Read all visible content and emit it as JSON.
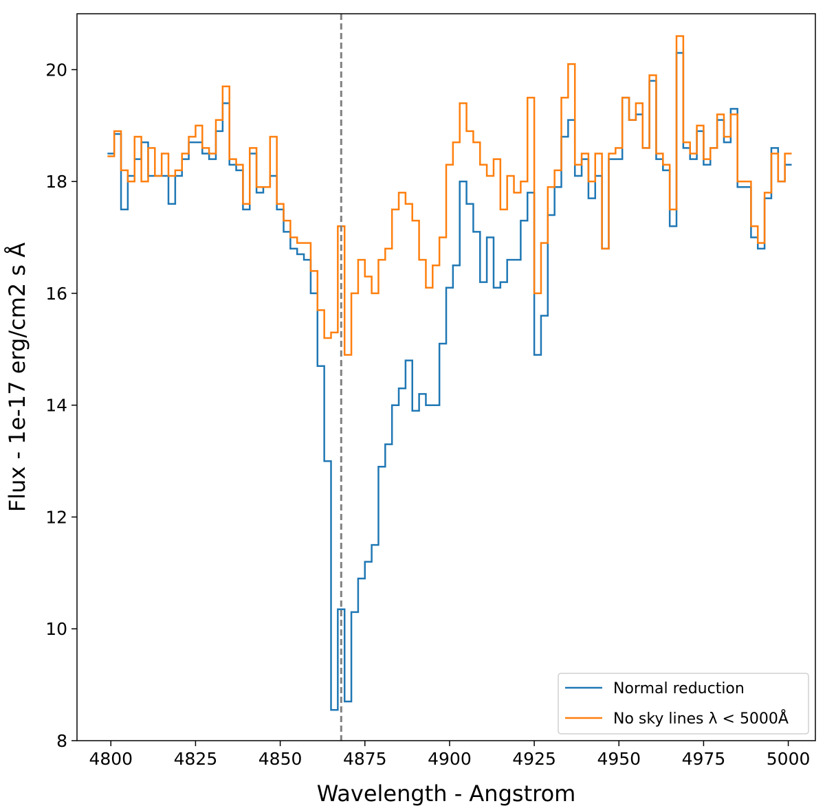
{
  "chart_data": {
    "type": "step",
    "xlabel": "Wavelength - Angstrom",
    "ylabel": "Flux - 1e-17 erg/cm2 s Å",
    "x": [
      4800,
      4802,
      4804,
      4806,
      4808,
      4810,
      4812,
      4814,
      4816,
      4818,
      4820,
      4822,
      4824,
      4826,
      4828,
      4830,
      4832,
      4834,
      4836,
      4838,
      4840,
      4842,
      4844,
      4846,
      4848,
      4850,
      4852,
      4854,
      4856,
      4858,
      4860,
      4862,
      4864,
      4866,
      4868,
      4870,
      4872,
      4874,
      4876,
      4878,
      4880,
      4882,
      4884,
      4886,
      4888,
      4890,
      4892,
      4894,
      4896,
      4898,
      4900,
      4902,
      4904,
      4906,
      4908,
      4910,
      4912,
      4914,
      4916,
      4918,
      4920,
      4922,
      4924,
      4926,
      4928,
      4930,
      4932,
      4934,
      4936,
      4938,
      4940,
      4942,
      4944,
      4946,
      4948,
      4950,
      4952,
      4954,
      4956,
      4958,
      4960,
      4962,
      4964,
      4966,
      4968,
      4970,
      4972,
      4974,
      4976,
      4978,
      4980,
      4982,
      4984,
      4986,
      4988,
      4990,
      4992,
      4994,
      4996,
      4998,
      5000
    ],
    "series": [
      {
        "name": "Normal reduction",
        "color": "#1f77b4",
        "values": [
          18.5,
          18.85,
          17.5,
          18.1,
          18.4,
          18.7,
          18.1,
          18.1,
          18.1,
          17.6,
          18.1,
          18.4,
          18.7,
          18.7,
          18.5,
          18.4,
          18.9,
          19.4,
          18.3,
          18.2,
          17.5,
          18.5,
          17.8,
          17.9,
          18.1,
          17.5,
          17.1,
          16.8,
          16.7,
          16.6,
          16.0,
          14.7,
          13.0,
          8.55,
          10.35,
          8.7,
          10.3,
          10.9,
          11.2,
          11.5,
          12.9,
          13.3,
          14.0,
          14.3,
          14.8,
          13.9,
          14.2,
          14.0,
          14.0,
          15.1,
          16.1,
          16.5,
          18.0,
          17.6,
          17.1,
          16.2,
          17.0,
          16.1,
          16.2,
          16.6,
          16.6,
          17.3,
          17.8,
          14.9,
          15.6,
          17.4,
          17.9,
          18.8,
          19.1,
          18.1,
          18.4,
          17.7,
          18.1,
          16.8,
          18.4,
          18.4,
          19.5,
          19.1,
          19.2,
          18.6,
          19.8,
          18.4,
          18.2,
          17.2,
          20.3,
          18.6,
          18.4,
          18.9,
          18.3,
          18.6,
          19.1,
          18.7,
          19.3,
          17.9,
          17.9,
          17.0,
          16.8,
          17.7,
          18.6,
          18.0,
          18.3
        ]
      },
      {
        "name": "No sky lines λ < 5000Å",
        "color": "#ff7f0e",
        "values": [
          18.45,
          18.9,
          18.2,
          18.0,
          18.8,
          18.0,
          18.6,
          18.1,
          18.5,
          18.1,
          18.2,
          18.5,
          18.8,
          19.0,
          18.6,
          18.5,
          19.1,
          19.7,
          18.4,
          18.3,
          17.6,
          18.6,
          17.9,
          17.9,
          18.8,
          17.6,
          17.3,
          17.0,
          16.9,
          16.9,
          16.4,
          15.7,
          15.2,
          15.3,
          17.2,
          14.9,
          16.0,
          16.6,
          16.3,
          16.0,
          16.6,
          16.8,
          17.5,
          17.8,
          17.6,
          17.3,
          16.6,
          16.1,
          16.5,
          17.0,
          18.3,
          18.7,
          19.4,
          18.9,
          18.7,
          18.3,
          18.1,
          18.4,
          17.5,
          18.1,
          17.8,
          18.0,
          19.5,
          16.0,
          16.9,
          17.9,
          18.2,
          19.5,
          20.1,
          18.3,
          18.5,
          18.0,
          18.5,
          16.8,
          18.5,
          18.6,
          19.5,
          19.1,
          19.4,
          18.6,
          19.9,
          18.5,
          18.3,
          17.5,
          20.6,
          18.7,
          18.5,
          19.0,
          18.4,
          18.6,
          19.2,
          18.8,
          19.2,
          18.0,
          18.0,
          17.2,
          16.9,
          17.8,
          18.5,
          18.0,
          18.5
        ]
      }
    ],
    "vline": 4868,
    "vline_color": "#808080",
    "xlim": [
      4790,
      5008
    ],
    "ylim": [
      8,
      21
    ],
    "xticks": [
      4800,
      4825,
      4850,
      4875,
      4900,
      4925,
      4950,
      4975,
      5000
    ],
    "yticks": [
      8,
      10,
      12,
      14,
      16,
      18,
      20
    ],
    "legend": "lower right"
  }
}
